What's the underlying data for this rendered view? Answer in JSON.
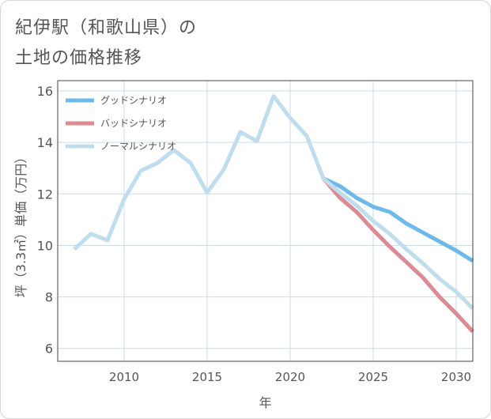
{
  "title": {
    "line1": "紀伊駅（和歌山県）の",
    "line2": "土地の価格推移"
  },
  "colors": {
    "good": "#6cb9ea",
    "bad": "#dc8a93",
    "normal": "#c0ddee",
    "grid": "#c9dbe7",
    "axis": "#444444",
    "tick_text": "#555555"
  },
  "chart_data": {
    "type": "line",
    "xlabel": "年",
    "ylabel": "坪（3.3㎡）単価（万円）",
    "xlim": [
      2006,
      2031
    ],
    "ylim": [
      5.5,
      16.4
    ],
    "xticks": [
      2010,
      2015,
      2020,
      2025,
      2030
    ],
    "yticks": [
      6,
      8,
      10,
      12,
      14,
      16
    ],
    "legend_position": "top-left",
    "series": [
      {
        "name": "グッドシナリオ",
        "key": "good",
        "x": [
          2022,
          2023,
          2024,
          2025,
          2026,
          2027,
          2028,
          2029,
          2030,
          2031
        ],
        "y": [
          12.6,
          12.3,
          11.85,
          11.5,
          11.3,
          10.85,
          10.5,
          10.15,
          9.8,
          9.4
        ]
      },
      {
        "name": "バッドシナリオ",
        "key": "bad",
        "x": [
          2022,
          2023,
          2024,
          2025,
          2026,
          2027,
          2028,
          2029,
          2030,
          2031
        ],
        "y": [
          12.6,
          11.85,
          11.3,
          10.6,
          9.95,
          9.35,
          8.75,
          8.0,
          7.35,
          6.65
        ]
      },
      {
        "name": "ノーマルシナリオ",
        "key": "normal",
        "x": [
          2007,
          2008,
          2009,
          2010,
          2011,
          2012,
          2013,
          2014,
          2015,
          2016,
          2017,
          2018,
          2019,
          2020,
          2021,
          2022,
          2023,
          2024,
          2025,
          2026,
          2027,
          2028,
          2029,
          2030,
          2031
        ],
        "y": [
          9.85,
          10.45,
          10.2,
          11.8,
          12.9,
          13.2,
          13.7,
          13.2,
          12.05,
          12.95,
          14.4,
          14.05,
          15.8,
          14.95,
          14.25,
          12.6,
          12.05,
          11.55,
          10.95,
          10.45,
          9.85,
          9.3,
          8.7,
          8.2,
          7.55
        ]
      }
    ]
  }
}
